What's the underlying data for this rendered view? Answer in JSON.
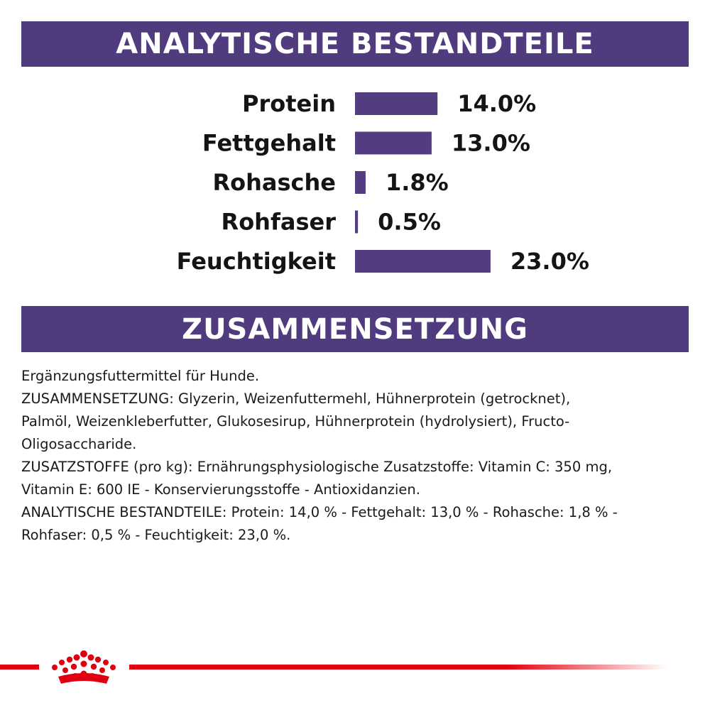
{
  "colors": {
    "banner": "#4f3b7e",
    "bar": "#533d80",
    "brand_red": "#e1000f"
  },
  "header": {
    "title": "ANALYTISCHE BESTANDTEILE"
  },
  "chart_data": {
    "type": "bar",
    "orientation": "horizontal",
    "categories": [
      "Protein",
      "Fettgehalt",
      "Rohasche",
      "Rohfaser",
      "Feuchtigkeit"
    ],
    "values": [
      14.0,
      13.0,
      1.8,
      0.5,
      23.0
    ],
    "value_labels": [
      "14.0%",
      "13.0%",
      "1.8%",
      "0.5%",
      "23.0%"
    ],
    "unit": "%"
  },
  "section2": {
    "title": "ZUSAMMENSETZUNG",
    "lines": [
      "Ergänzungsfuttermittel für Hunde.",
      "ZUSAMMENSETZUNG: Glyzerin, Weizenfuttermehl, Hühnerprotein (getrocknet),",
      "Palmöl, Weizenkleberfutter, Glukosesirup, Hühnerprotein (hydrolysiert), Fructo-",
      "Oligosaccharide.",
      "ZUSATZSTOFFE (pro kg): Ernährungsphysiologische Zusatzstoffe: Vitamin C: 350 mg,",
      "Vitamin E: 600 IE - Konservierungsstoffe - Antioxidanzien.",
      "ANALYTISCHE BESTANDTEILE: Protein: 14,0 % - Fettgehalt: 13,0 % - Rohasche: 1,8 % -",
      "Rohfaser: 0,5 % - Feuchtigkeit: 23,0 %."
    ]
  },
  "footer": {
    "logo": "crown-icon"
  }
}
